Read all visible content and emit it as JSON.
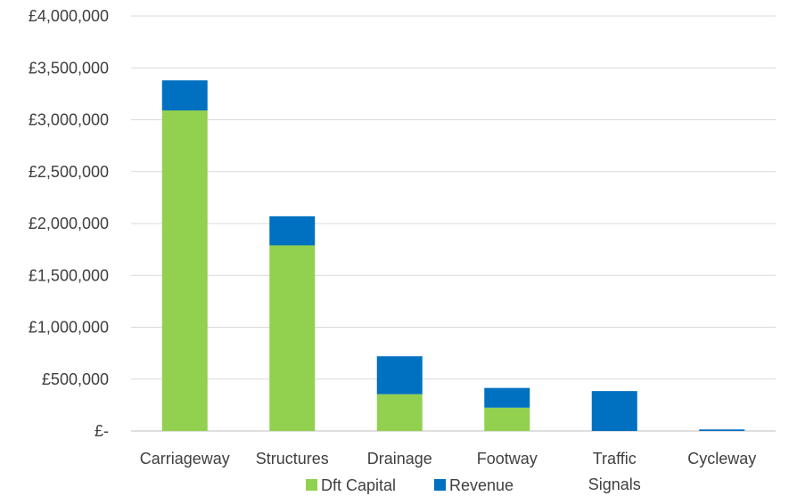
{
  "chart_data": {
    "type": "bar",
    "stacked": true,
    "categories": [
      [
        "Carriageway"
      ],
      [
        "Structures"
      ],
      [
        "Drainage"
      ],
      [
        "Footway"
      ],
      [
        "Traffic",
        "Signals"
      ],
      [
        "Cycleway"
      ]
    ],
    "series": [
      {
        "name": "Dft Capital",
        "color": "#92d050",
        "values": [
          3090000,
          1790000,
          355000,
          225000,
          0,
          0
        ]
      },
      {
        "name": "Revenue",
        "color": "#0070c0",
        "values": [
          290000,
          280000,
          365000,
          190000,
          385000,
          15000
        ]
      }
    ],
    "yticks": [
      {
        "value": 0,
        "label": "£-"
      },
      {
        "value": 500000,
        "label": "£500,000"
      },
      {
        "value": 1000000,
        "label": "£1,000,000"
      },
      {
        "value": 1500000,
        "label": "£1,500,000"
      },
      {
        "value": 2000000,
        "label": "£2,000,000"
      },
      {
        "value": 2500000,
        "label": "£2,500,000"
      },
      {
        "value": 3000000,
        "label": "£3,000,000"
      },
      {
        "value": 3500000,
        "label": "£3,500,000"
      },
      {
        "value": 4000000,
        "label": "£4,000,000"
      }
    ],
    "ylim": [
      0,
      4000000
    ],
    "grid": true,
    "legend_position": "bottom",
    "title": "",
    "xlabel": "",
    "ylabel": ""
  }
}
